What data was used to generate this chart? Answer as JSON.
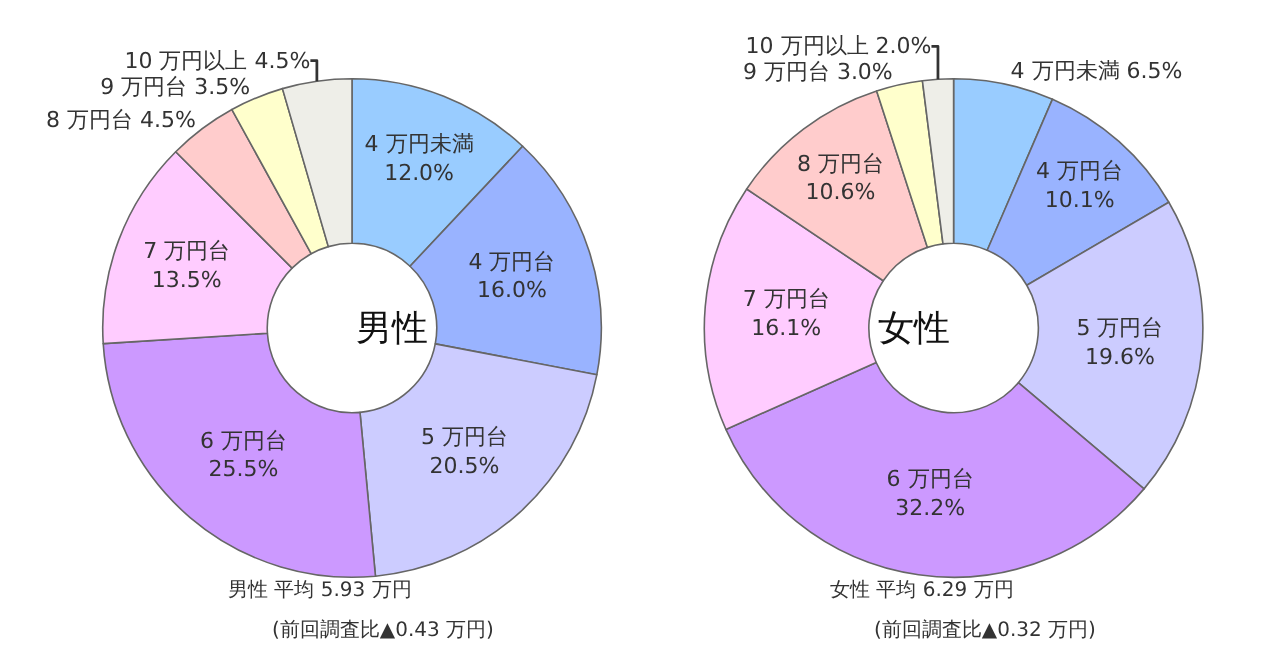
{
  "chart_data": [
    {
      "type": "donut",
      "title": "男性",
      "categories": [
        "4 万円未満",
        "4 万円台",
        "5 万円台",
        "6 万円台",
        "7 万円台",
        "8 万円台",
        "9 万円台",
        "10 万円以上"
      ],
      "values": [
        12.0,
        16.0,
        20.5,
        25.5,
        13.5,
        4.5,
        3.5,
        4.5
      ],
      "colors": [
        "#99ccff",
        "#99b3ff",
        "#ccccff",
        "#cc99ff",
        "#ffccff",
        "#ffcccc",
        "#ffffcc",
        "#eeeee8"
      ],
      "value_labels": [
        "12.0%",
        "16.0%",
        "20.5%",
        "25.5%",
        "13.5%",
        "4.5%",
        "3.5%",
        "4.5%"
      ],
      "annotations": [
        "男性 平均 5.93 万円",
        "(前回調査比▲0.43 万円)"
      ]
    },
    {
      "type": "donut",
      "title": "女性",
      "categories": [
        "4 万円未満",
        "4 万円台",
        "5 万円台",
        "6 万円台",
        "7 万円台",
        "8 万円台",
        "9 万円台",
        "10 万円以上"
      ],
      "values": [
        6.5,
        10.1,
        19.6,
        32.2,
        16.1,
        10.6,
        3.0,
        2.0
      ],
      "colors": [
        "#99ccff",
        "#99b3ff",
        "#ccccff",
        "#cc99ff",
        "#ffccff",
        "#ffcccc",
        "#ffffcc",
        "#eeeee8"
      ],
      "value_labels": [
        "6.5%",
        "10.1%",
        "19.6%",
        "32.2%",
        "16.1%",
        "10.6%",
        "3.0%",
        "2.0%"
      ],
      "annotations": [
        "女性 平均 6.29 万円",
        "(前回調査比▲0.32 万円)"
      ]
    }
  ]
}
